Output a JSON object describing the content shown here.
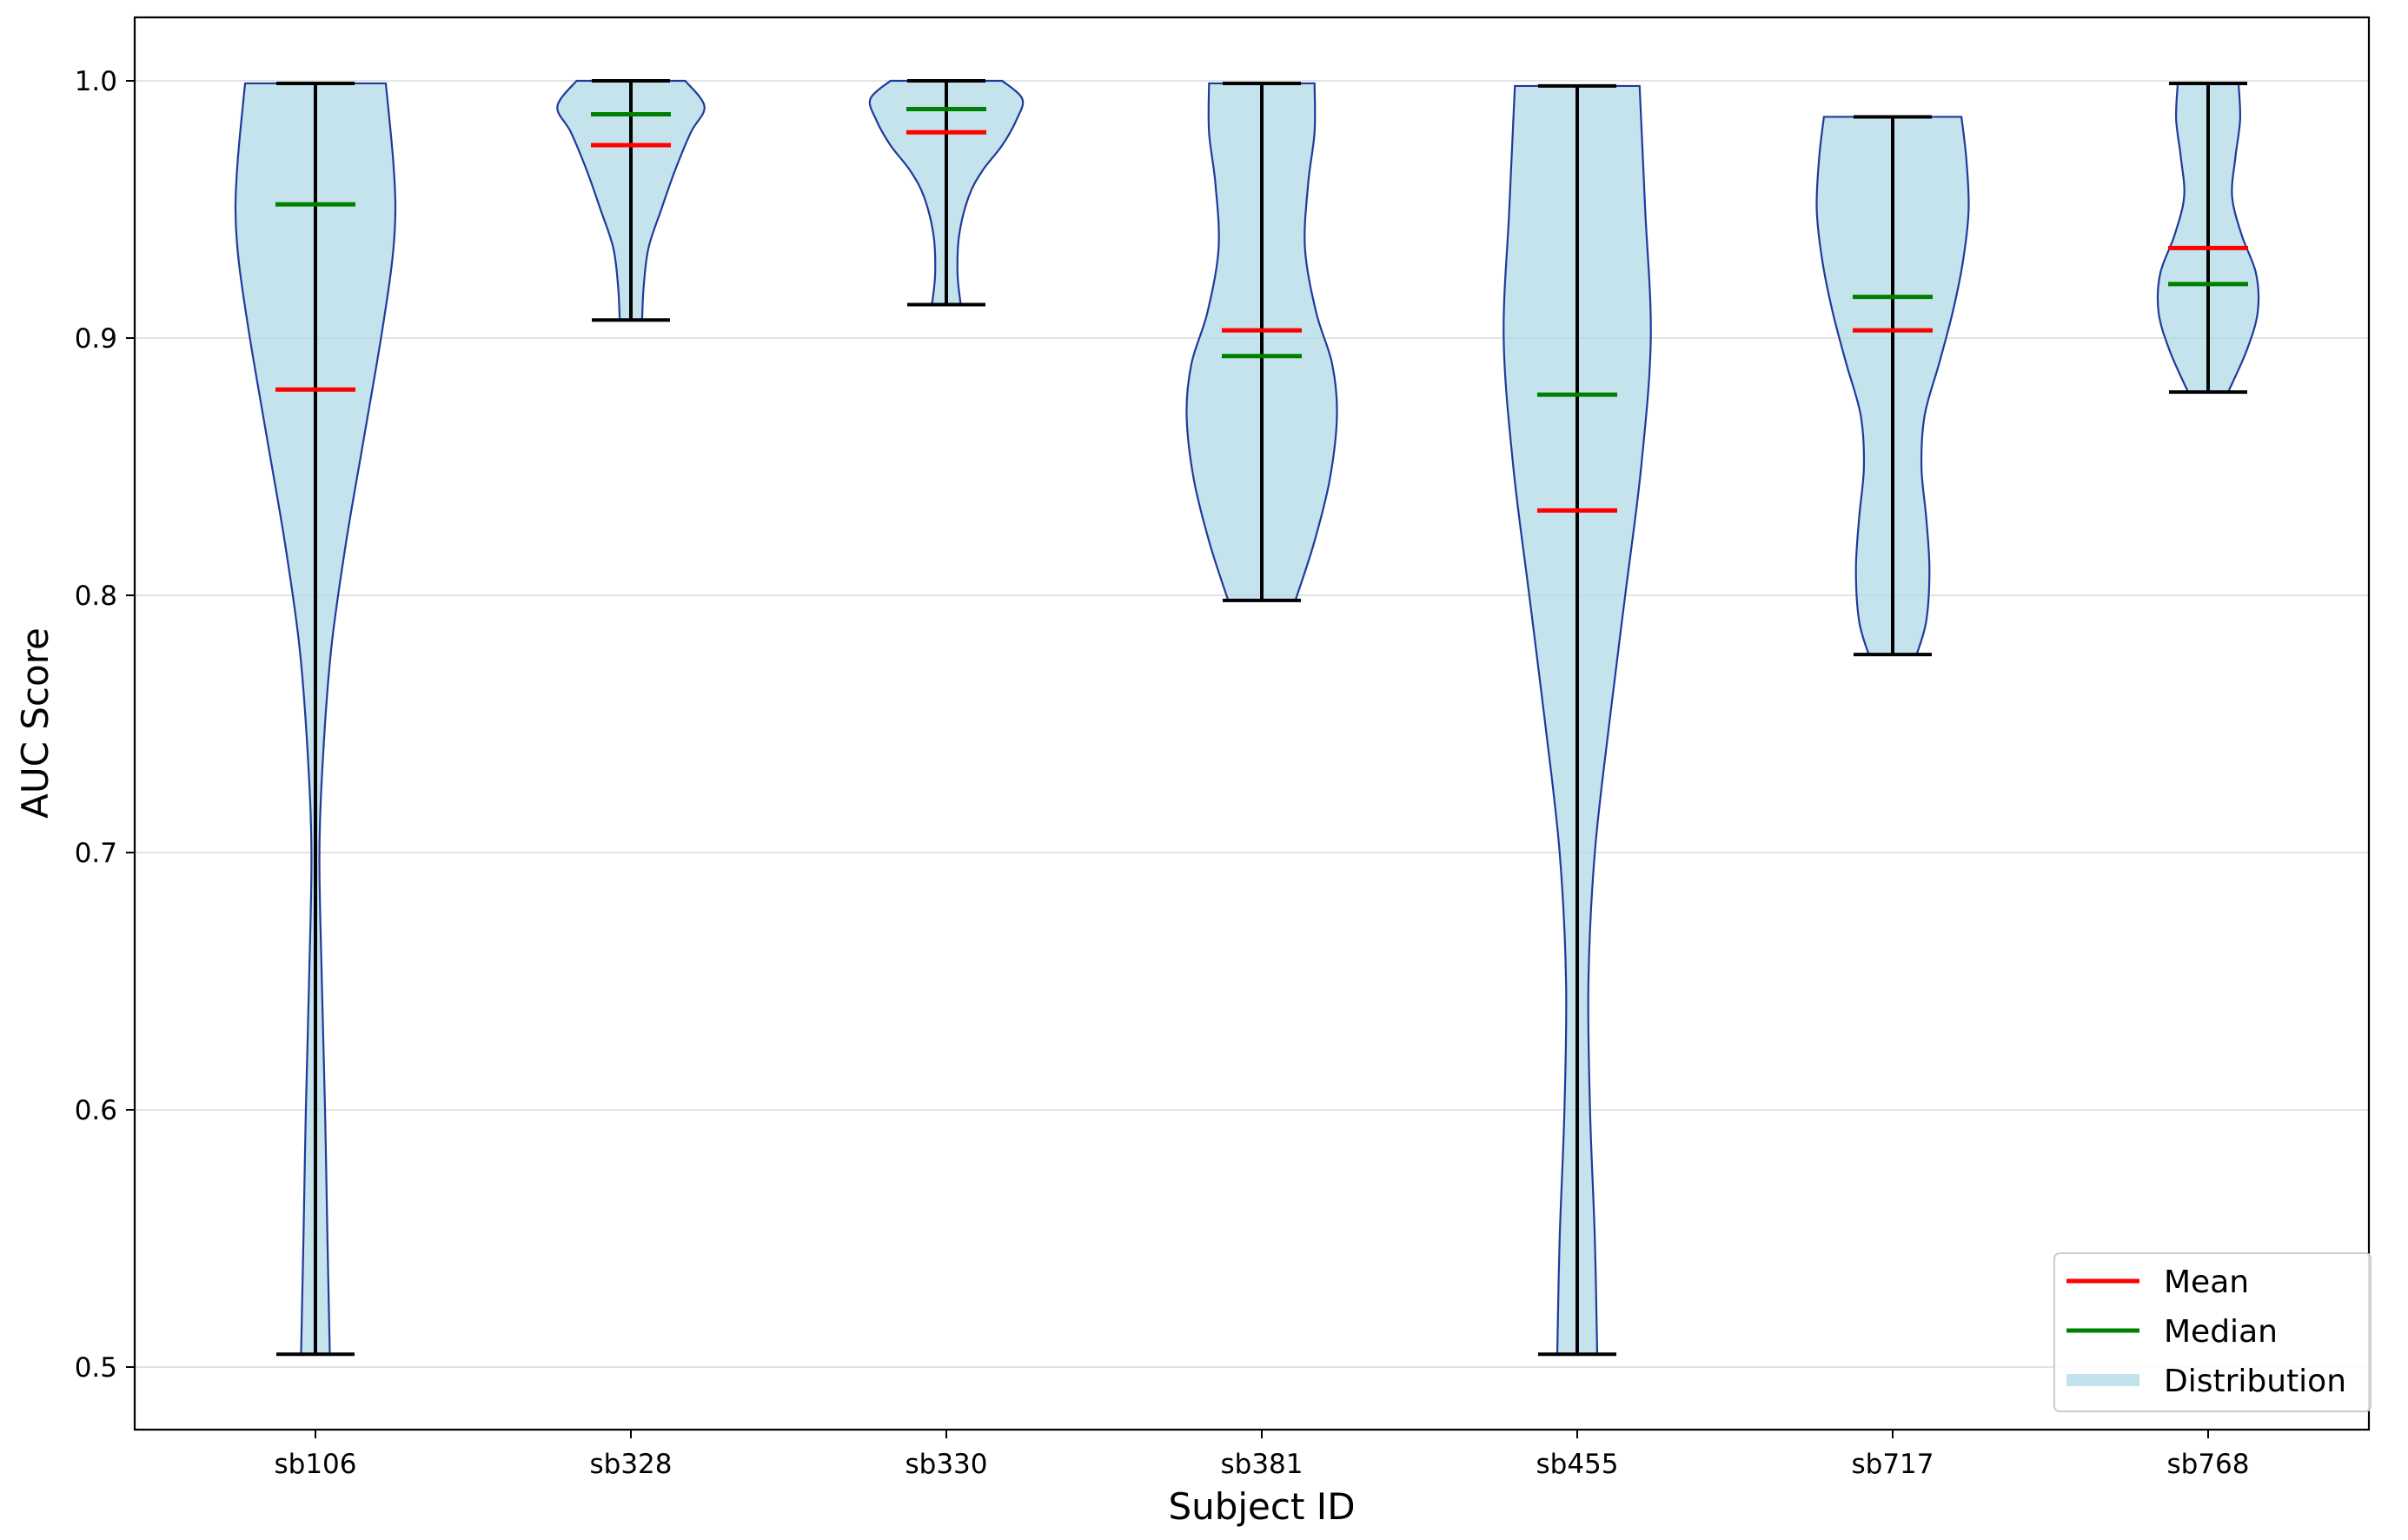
{
  "chart_data": {
    "type": "violin",
    "title": "",
    "xlabel": "Subject ID",
    "ylabel": "AUC Score",
    "ylim": [
      0.48,
      1.025
    ],
    "yticks": [
      "0.5",
      "0.6",
      "0.7",
      "0.8",
      "0.9",
      "1.0"
    ],
    "ytick_values": [
      0.5,
      0.6,
      0.7,
      0.8,
      0.9,
      1.0
    ],
    "grid": "horizontal",
    "legend": {
      "placement": "lower-right",
      "entries": [
        {
          "label": "Mean",
          "color": "#ff0000"
        },
        {
          "label": "Median",
          "color": "#008000"
        },
        {
          "label": "Distribution",
          "color": "#add8e6"
        }
      ]
    },
    "colors": {
      "fill": "#add8e6",
      "edge": "#1f3a9a",
      "whisker": "#000000",
      "mean": "#ff0000",
      "median": "#008000",
      "grid": "#e3e3e3"
    },
    "categories": [
      "sb106",
      "sb328",
      "sb330",
      "sb381",
      "sb455",
      "sb717",
      "sb768"
    ],
    "violins": [
      {
        "name": "sb106",
        "min": 0.505,
        "max": 0.999,
        "mean": 0.88,
        "median": 0.952,
        "density": [
          [
            0.505,
            0.18
          ],
          [
            0.55,
            0.15
          ],
          [
            0.6,
            0.12
          ],
          [
            0.65,
            0.08
          ],
          [
            0.7,
            0.05
          ],
          [
            0.74,
            0.1
          ],
          [
            0.78,
            0.2
          ],
          [
            0.82,
            0.38
          ],
          [
            0.86,
            0.6
          ],
          [
            0.9,
            0.82
          ],
          [
            0.93,
            0.96
          ],
          [
            0.95,
            1.0
          ],
          [
            0.97,
            0.97
          ],
          [
            0.999,
            0.88
          ]
        ]
      },
      {
        "name": "sb328",
        "min": 0.907,
        "max": 1.0,
        "mean": 0.975,
        "median": 0.987,
        "density": [
          [
            0.907,
            0.14
          ],
          [
            0.92,
            0.16
          ],
          [
            0.935,
            0.22
          ],
          [
            0.95,
            0.38
          ],
          [
            0.965,
            0.55
          ],
          [
            0.98,
            0.75
          ],
          [
            0.99,
            0.92
          ],
          [
            1.0,
            0.68
          ]
        ]
      },
      {
        "name": "sb330",
        "min": 0.913,
        "max": 1.0,
        "mean": 0.98,
        "median": 0.989,
        "density": [
          [
            0.913,
            0.18
          ],
          [
            0.925,
            0.14
          ],
          [
            0.94,
            0.16
          ],
          [
            0.955,
            0.28
          ],
          [
            0.965,
            0.45
          ],
          [
            0.975,
            0.7
          ],
          [
            0.985,
            0.88
          ],
          [
            0.993,
            0.95
          ],
          [
            1.0,
            0.7
          ]
        ]
      },
      {
        "name": "sb381",
        "min": 0.798,
        "max": 0.999,
        "mean": 0.903,
        "median": 0.893,
        "density": [
          [
            0.798,
            0.42
          ],
          [
            0.82,
            0.65
          ],
          [
            0.845,
            0.85
          ],
          [
            0.87,
            0.94
          ],
          [
            0.89,
            0.88
          ],
          [
            0.91,
            0.68
          ],
          [
            0.935,
            0.54
          ],
          [
            0.96,
            0.58
          ],
          [
            0.98,
            0.66
          ],
          [
            0.999,
            0.66
          ]
        ]
      },
      {
        "name": "sb455",
        "min": 0.505,
        "max": 0.998,
        "mean": 0.833,
        "median": 0.878,
        "density": [
          [
            0.505,
            0.25
          ],
          [
            0.55,
            0.22
          ],
          [
            0.6,
            0.16
          ],
          [
            0.65,
            0.14
          ],
          [
            0.7,
            0.22
          ],
          [
            0.75,
            0.4
          ],
          [
            0.8,
            0.6
          ],
          [
            0.85,
            0.8
          ],
          [
            0.9,
            0.92
          ],
          [
            0.95,
            0.85
          ],
          [
            0.998,
            0.78
          ]
        ]
      },
      {
        "name": "sb717",
        "min": 0.777,
        "max": 0.986,
        "mean": 0.903,
        "median": 0.916,
        "density": [
          [
            0.777,
            0.3
          ],
          [
            0.79,
            0.42
          ],
          [
            0.81,
            0.46
          ],
          [
            0.83,
            0.42
          ],
          [
            0.85,
            0.36
          ],
          [
            0.87,
            0.4
          ],
          [
            0.89,
            0.58
          ],
          [
            0.91,
            0.75
          ],
          [
            0.93,
            0.88
          ],
          [
            0.95,
            0.95
          ],
          [
            0.97,
            0.92
          ],
          [
            0.986,
            0.86
          ]
        ]
      },
      {
        "name": "sb768",
        "min": 0.879,
        "max": 0.999,
        "mean": 0.935,
        "median": 0.921,
        "density": [
          [
            0.879,
            0.25
          ],
          [
            0.895,
            0.48
          ],
          [
            0.91,
            0.62
          ],
          [
            0.925,
            0.6
          ],
          [
            0.94,
            0.42
          ],
          [
            0.955,
            0.3
          ],
          [
            0.97,
            0.34
          ],
          [
            0.985,
            0.4
          ],
          [
            0.999,
            0.38
          ]
        ]
      }
    ]
  }
}
